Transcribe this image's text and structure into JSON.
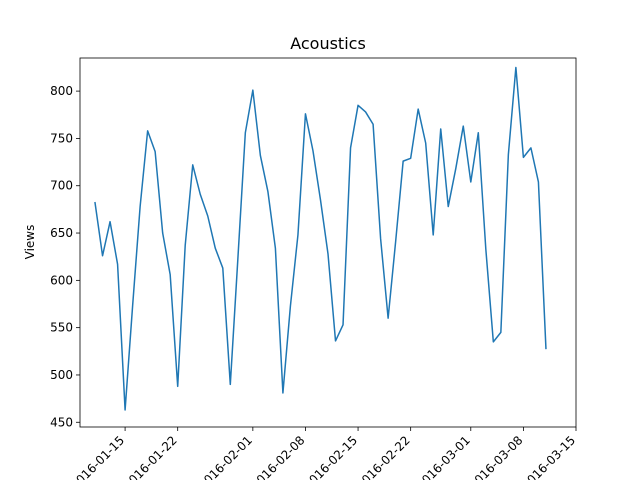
{
  "chart_data": {
    "type": "line",
    "title": "Acoustics",
    "xlabel": "",
    "ylabel": "Views",
    "x_axis": "date",
    "xlim": [
      "2016-01-09",
      "2016-03-15"
    ],
    "ylim": [
      445,
      835
    ],
    "xticks": [
      "2016-01-15",
      "2016-01-22",
      "2016-02-01",
      "2016-02-08",
      "2016-02-15",
      "2016-02-22",
      "2016-03-01",
      "2016-03-08",
      "2016-03-15"
    ],
    "yticks": [
      450,
      500,
      550,
      600,
      650,
      700,
      750,
      800
    ],
    "grid": false,
    "legend": "none",
    "series": [
      {
        "color": "#1f77b4",
        "x": [
          "2016-01-11",
          "2016-01-12",
          "2016-01-13",
          "2016-01-14",
          "2016-01-15",
          "2016-01-16",
          "2016-01-17",
          "2016-01-18",
          "2016-01-19",
          "2016-01-20",
          "2016-01-21",
          "2016-01-22",
          "2016-01-23",
          "2016-01-24",
          "2016-01-25",
          "2016-01-26",
          "2016-01-27",
          "2016-01-28",
          "2016-01-29",
          "2016-01-30",
          "2016-01-31",
          "2016-02-01",
          "2016-02-02",
          "2016-02-03",
          "2016-02-04",
          "2016-02-05",
          "2016-02-06",
          "2016-02-07",
          "2016-02-08",
          "2016-02-09",
          "2016-02-10",
          "2016-02-11",
          "2016-02-12",
          "2016-02-13",
          "2016-02-14",
          "2016-02-15",
          "2016-02-16",
          "2016-02-17",
          "2016-02-18",
          "2016-02-19",
          "2016-02-20",
          "2016-02-21",
          "2016-02-22",
          "2016-02-23",
          "2016-02-24",
          "2016-02-25",
          "2016-02-26",
          "2016-02-27",
          "2016-02-28",
          "2016-02-29",
          "2016-03-01",
          "2016-03-02",
          "2016-03-03",
          "2016-03-04",
          "2016-03-05",
          "2016-03-06",
          "2016-03-07",
          "2016-03-08",
          "2016-03-09",
          "2016-03-10",
          "2016-03-11"
        ],
        "values": [
          682,
          626,
          662,
          617,
          463,
          573,
          678,
          758,
          736,
          650,
          606,
          488,
          637,
          722,
          691,
          668,
          634,
          613,
          490,
          622,
          756,
          801,
          732,
          694,
          634,
          481,
          573,
          648,
          776,
          737,
          685,
          628,
          536,
          553,
          740,
          785,
          778,
          765,
          644,
          560,
          641,
          726,
          729,
          781,
          745,
          648,
          760,
          678,
          718,
          763,
          704,
          756,
          633,
          535,
          545,
          733,
          825,
          730,
          740,
          704,
          528
        ]
      }
    ]
  }
}
